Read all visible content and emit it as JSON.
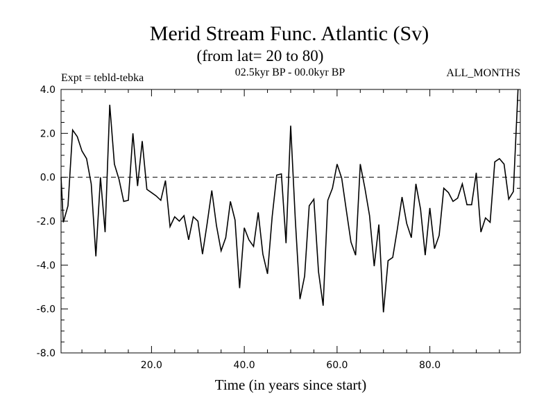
{
  "chart_data": {
    "type": "line",
    "title": "Merid Stream Func. Atlantic (Sv)",
    "subtitle": "(from lat= 20 to 80)",
    "expt_label": "Expt = tebld-tebka",
    "period_label": "02.5kyr BP - 00.0kyr BP",
    "months_label": "ALL_MONTHS",
    "xlabel": "Time (in years since start)",
    "ylabel": "",
    "xlim": [
      0.5,
      99.5
    ],
    "ylim": [
      -8,
      4
    ],
    "xticks": [
      20,
      40,
      60,
      80
    ],
    "xtick_labels": [
      "20.0",
      "40.0",
      "60.0",
      "80.0"
    ],
    "yticks": [
      4,
      2,
      0,
      -2,
      -4,
      -6,
      -8
    ],
    "ytick_labels": [
      "4.0",
      "2.0",
      "0.0",
      "-2.0",
      "-4.0",
      "-6.0",
      "-8.0"
    ],
    "zero_line": 0,
    "x": [
      1,
      2,
      3,
      4,
      5,
      6,
      7,
      8,
      9,
      10,
      11,
      12,
      13,
      14,
      15,
      16,
      17,
      18,
      19,
      20,
      21,
      22,
      23,
      24,
      25,
      26,
      27,
      28,
      29,
      30,
      31,
      32,
      33,
      34,
      35,
      36,
      37,
      38,
      39,
      40,
      41,
      42,
      43,
      44,
      45,
      46,
      47,
      48,
      49,
      50,
      51,
      52,
      53,
      54,
      55,
      56,
      57,
      58,
      59,
      60,
      61,
      62,
      63,
      64,
      65,
      66,
      67,
      68,
      69,
      70,
      71,
      72,
      73,
      74,
      75,
      76,
      77,
      78,
      79,
      80,
      81,
      82,
      83,
      84,
      85,
      86,
      87,
      88,
      89,
      90,
      91,
      92,
      93,
      94,
      95,
      96,
      97,
      98,
      99
    ],
    "series": [
      {
        "name": "tebld-tebka",
        "values": [
          -2.05,
          -1.3,
          2.15,
          1.85,
          1.2,
          0.85,
          -0.3,
          -3.6,
          0.0,
          -2.5,
          3.3,
          0.6,
          -0.1,
          -1.1,
          -1.05,
          2.0,
          -0.4,
          1.65,
          -0.55,
          -0.7,
          -0.85,
          -1.05,
          -0.15,
          -2.25,
          -1.8,
          -2.0,
          -1.75,
          -2.85,
          -1.8,
          -2.0,
          -3.5,
          -2.1,
          -0.6,
          -2.2,
          -3.35,
          -2.75,
          -1.1,
          -1.95,
          -5.05,
          -2.3,
          -2.85,
          -3.15,
          -1.6,
          -3.5,
          -4.4,
          -1.8,
          0.1,
          0.15,
          -3.0,
          2.35,
          -1.95,
          -5.55,
          -4.5,
          -1.3,
          -1.0,
          -4.3,
          -5.85,
          -1.05,
          -0.5,
          0.6,
          -0.05,
          -1.5,
          -2.95,
          -3.55,
          0.6,
          -0.5,
          -1.75,
          -4.05,
          -2.15,
          -6.15,
          -3.8,
          -3.65,
          -2.35,
          -0.9,
          -2.1,
          -2.75,
          -0.3,
          -1.45,
          -3.55,
          -1.4,
          -3.25,
          -2.65,
          -0.5,
          -0.7,
          -1.1,
          -0.95,
          -0.3,
          -1.25,
          -1.25,
          0.2,
          -2.5,
          -1.85,
          -2.05,
          0.7,
          0.85,
          0.6,
          -1.0,
          -0.65,
          4.0
        ]
      }
    ]
  }
}
